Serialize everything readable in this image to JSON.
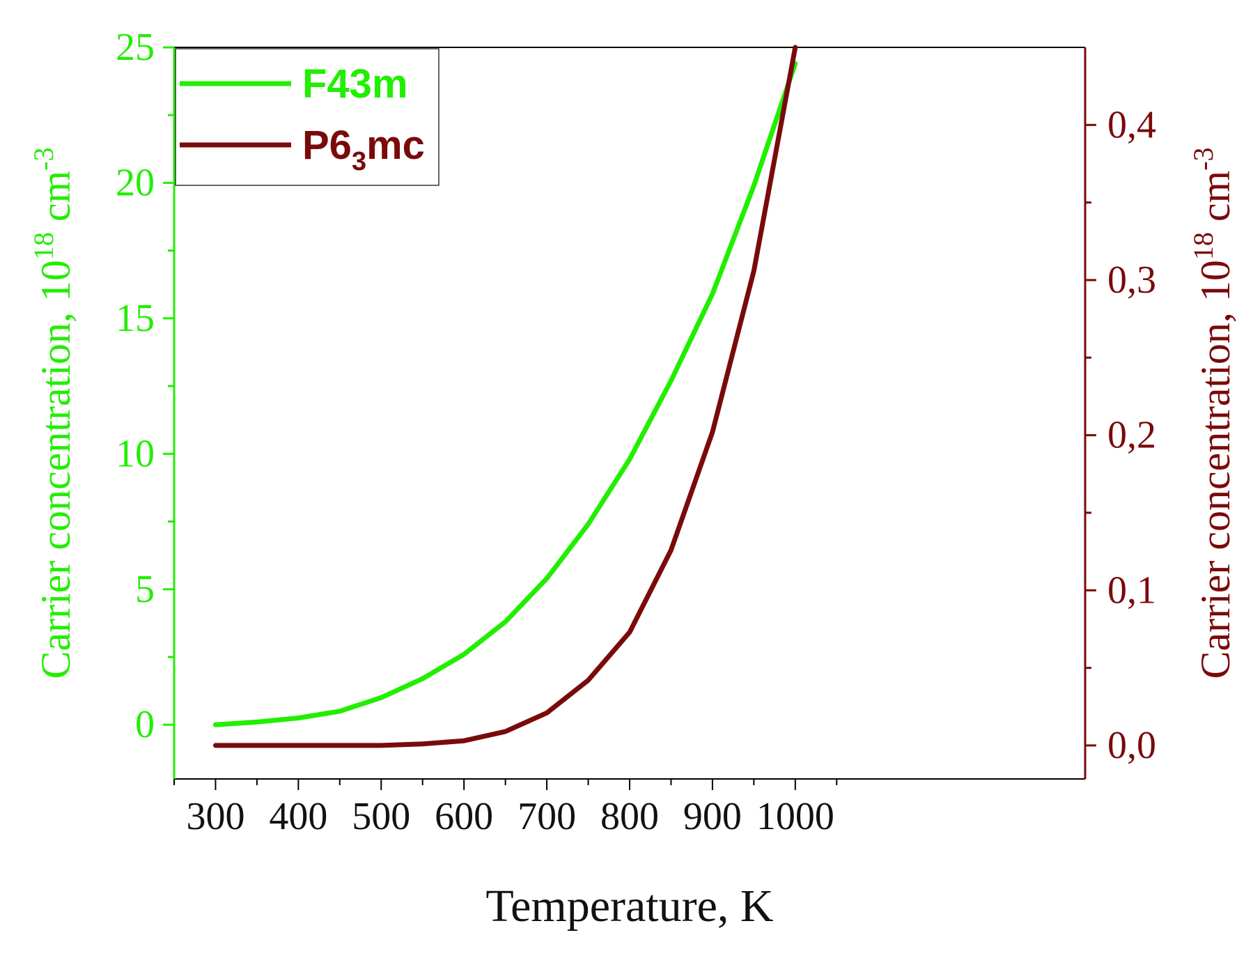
{
  "chart_data": {
    "type": "line",
    "xlabel": "Temperature, K",
    "ylabel_left": {
      "prefix": "Carrier concentration, 10",
      "sup1": "18",
      "mid": " cm",
      "sup2": "-3"
    },
    "ylabel_right": {
      "prefix": "Carrier concentration, 10",
      "sup1": "18",
      "mid": " cm",
      "sup2": "-3"
    },
    "xlim": [
      250,
      1350
    ],
    "ylim_left": [
      -2,
      25
    ],
    "ylim_right": [
      -0.0216,
      0.45
    ],
    "x_ticks": [
      "300",
      "400",
      "500",
      "600",
      "700",
      "800",
      "900",
      "1000"
    ],
    "x_tick_values": [
      300,
      400,
      500,
      600,
      700,
      800,
      900,
      1000
    ],
    "y_ticks_left": [
      "0",
      "5",
      "10",
      "15",
      "20",
      "25"
    ],
    "y_tick_values_left": [
      0,
      5,
      10,
      15,
      20,
      25
    ],
    "y_ticks_right": [
      "0,0",
      "0,1",
      "0,2",
      "0,3",
      "0,4"
    ],
    "y_tick_values_right": [
      0.0,
      0.1,
      0.2,
      0.3,
      0.4
    ],
    "legend_position": "top-left",
    "x": [
      300,
      350,
      400,
      450,
      500,
      550,
      600,
      650,
      700,
      750,
      800,
      850,
      900,
      950,
      1000
    ],
    "series": [
      {
        "name": "F43m",
        "axis": "left",
        "color": "#22ee00",
        "values": [
          0.0,
          0.1,
          0.25,
          0.5,
          1.0,
          1.7,
          2.6,
          3.8,
          5.4,
          7.4,
          9.8,
          12.7,
          15.9,
          19.9,
          24.4
        ]
      },
      {
        "name": "P6mc",
        "name_sub": "3",
        "name_suffix": "mc",
        "name_prefix": "P6",
        "axis": "right",
        "color": "#7a0a0a",
        "values": [
          0.0,
          0.0,
          0.0,
          0.0,
          0.0,
          0.001,
          0.003,
          0.009,
          0.021,
          0.042,
          0.073,
          0.126,
          0.202,
          0.306,
          0.45
        ]
      }
    ],
    "colors": {
      "left_axis": "#22ee00",
      "right_axis": "#7a0a0a",
      "frame": "#000000"
    }
  }
}
